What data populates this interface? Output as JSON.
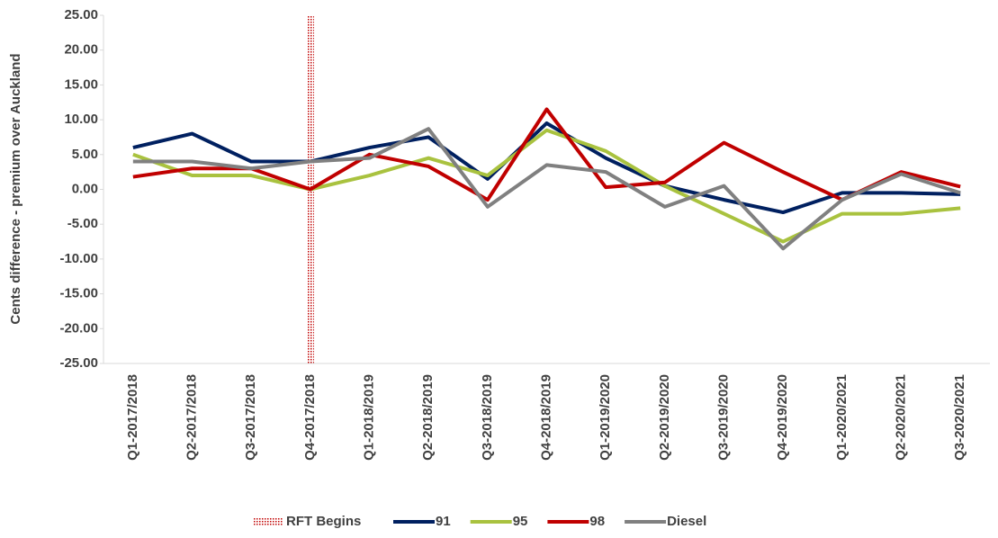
{
  "chart_data": {
    "type": "line",
    "y_label": "Cents difference - premium over Auckland",
    "categories": [
      "Q1-2017/2018",
      "Q2-2017/2018",
      "Q3-2017/2018",
      "Q4-2017/2018",
      "Q1-2018/2019",
      "Q2-2018/2019",
      "Q3-2018/2019",
      "Q4-2018/2019",
      "Q1-2019/2020",
      "Q2-2019/2020",
      "Q3-2019/2020",
      "Q4-2019/2020",
      "Q1-2020/2021",
      "Q2-2020/2021",
      "Q3-2020/2021"
    ],
    "series": [
      {
        "name": "91",
        "color": "#002060",
        "values": [
          6,
          8,
          4,
          4,
          6,
          7.5,
          1.5,
          9.5,
          4.5,
          0.5,
          -1.5,
          -3.3,
          -0.5,
          -0.5,
          -0.7
        ]
      },
      {
        "name": "95",
        "color": "#a9c23f",
        "values": [
          5,
          2,
          2,
          0,
          2,
          4.5,
          2,
          8.5,
          5.5,
          0.5,
          -3.5,
          -7.5,
          -3.5,
          -3.5,
          -2.7
        ]
      },
      {
        "name": "98",
        "color": "#c00000",
        "values": [
          1.8,
          3,
          3,
          0,
          5,
          3.3,
          -1.5,
          11.5,
          0.3,
          1,
          6.7,
          2.5,
          -1.5,
          2.5,
          0.4
        ]
      },
      {
        "name": "Diesel",
        "color": "#808080",
        "values": [
          4,
          4,
          3,
          4,
          4.5,
          8.7,
          -2.5,
          3.5,
          2.5,
          -2.5,
          0.5,
          -8.5,
          -1.5,
          2.2,
          -0.5
        ]
      }
    ],
    "vline": {
      "name": "RFT Begins",
      "at": "Q4-2017/2018",
      "color": "#c00000"
    },
    "ylim": [
      -25,
      25
    ],
    "yticks": [
      {
        "value": -25,
        "label": "-25.00"
      },
      {
        "value": -20,
        "label": "-20.00"
      },
      {
        "value": -15,
        "label": "-15.00"
      },
      {
        "value": -10,
        "label": "-10.00"
      },
      {
        "value": -5,
        "label": "-5.00"
      },
      {
        "value": 0,
        "label": "0.00"
      },
      {
        "value": 5,
        "label": "5.00"
      },
      {
        "value": 10,
        "label": "10.00"
      },
      {
        "value": 15,
        "label": "15.00"
      },
      {
        "value": 20,
        "label": "20.00"
      },
      {
        "value": 25,
        "label": "25.00"
      }
    ],
    "grid": false,
    "legend": "bottom"
  }
}
